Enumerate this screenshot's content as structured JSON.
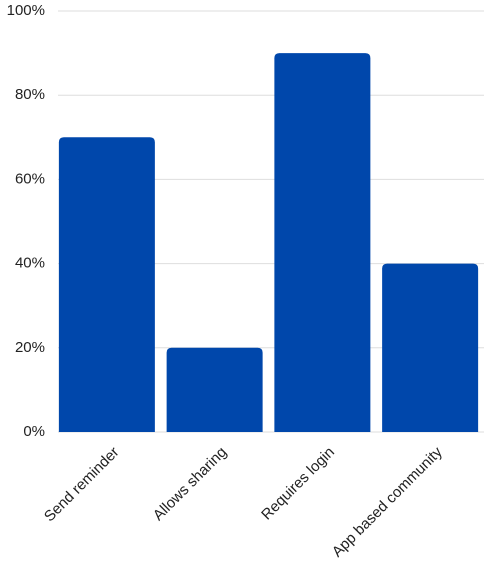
{
  "chart_data": {
    "type": "bar",
    "categories": [
      "Send reminder",
      "Allows sharing",
      "Requires login",
      "App based community"
    ],
    "values": [
      70,
      20,
      90,
      40
    ],
    "color": "#0047ab",
    "ylim": [
      0,
      100
    ],
    "yticks": [
      {
        "value": 0,
        "label": "0%"
      },
      {
        "value": 20,
        "label": "20%"
      },
      {
        "value": 40,
        "label": "40%"
      },
      {
        "value": 60,
        "label": "60%"
      },
      {
        "value": 80,
        "label": "80%"
      },
      {
        "value": 100,
        "label": "100%"
      }
    ],
    "grid": true
  }
}
